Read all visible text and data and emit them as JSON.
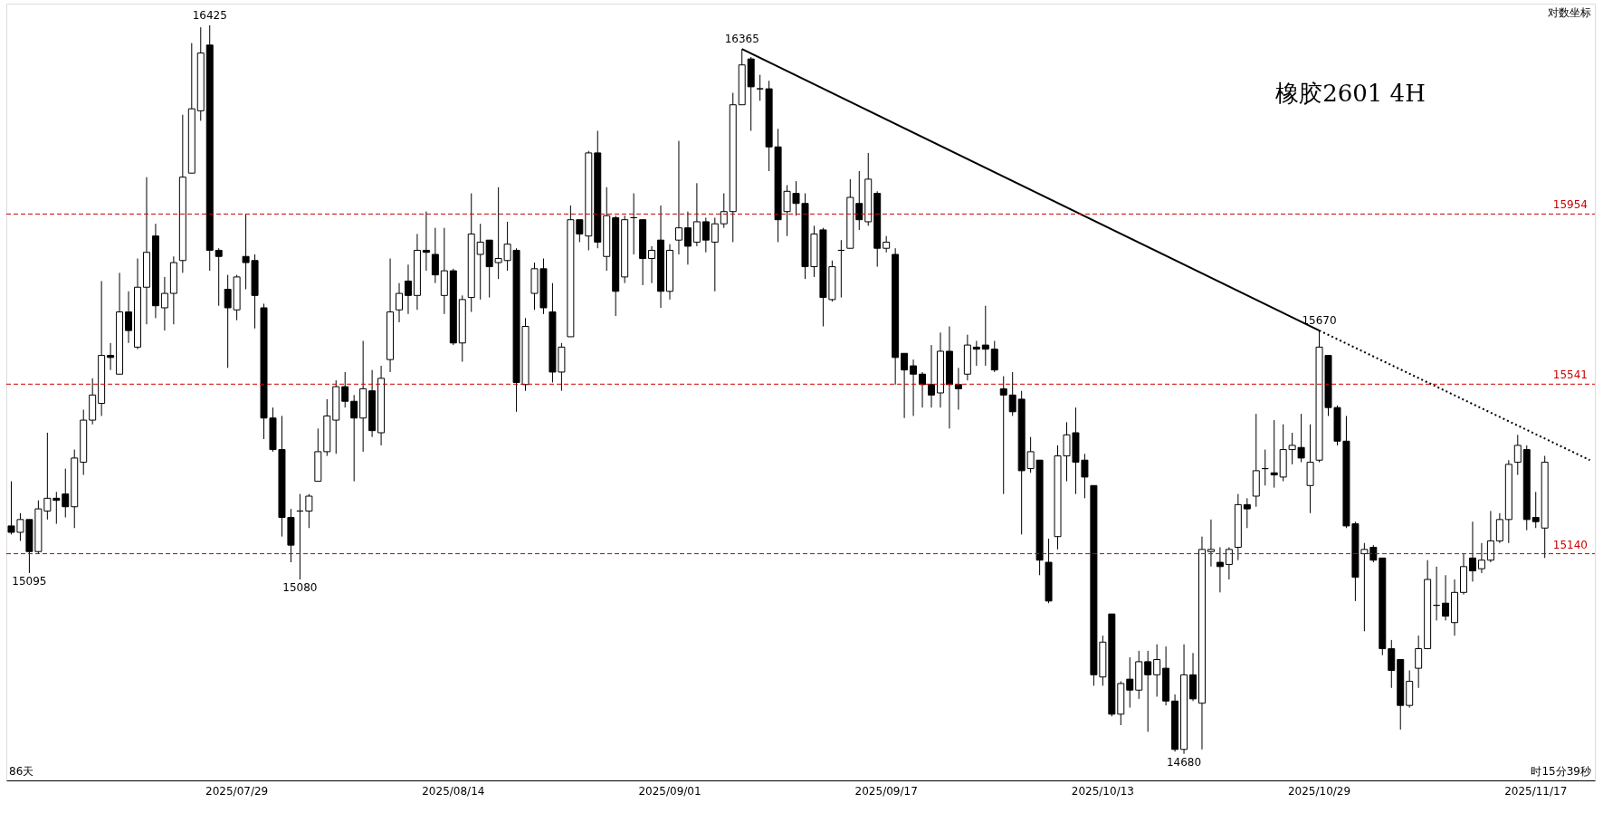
{
  "chart_data": {
    "type": "candlestick",
    "title": "橡胶2601  4H",
    "log": true,
    "tick_labels": "x",
    "ylim": [
      14620,
      16480
    ],
    "categories": [
      null,
      null,
      null,
      null,
      null,
      null,
      null,
      null,
      null,
      null,
      null,
      null,
      null,
      null,
      null,
      null,
      null,
      null,
      null,
      null,
      null,
      null,
      null,
      null,
      null,
      "2025/07/29",
      null,
      null,
      null,
      null,
      null,
      null,
      null,
      null,
      null,
      null,
      null,
      null,
      null,
      null,
      null,
      null,
      null,
      null,
      null,
      null,
      null,
      null,
      null,
      "2025/08/14",
      null,
      null,
      null,
      null,
      null,
      null,
      null,
      null,
      null,
      null,
      null,
      null,
      null,
      null,
      null,
      null,
      null,
      null,
      null,
      null,
      null,
      null,
      null,
      "2025/09/01",
      null,
      null,
      null,
      null,
      null,
      null,
      null,
      null,
      null,
      null,
      null,
      null,
      null,
      null,
      null,
      null,
      null,
      null,
      null,
      null,
      null,
      null,
      null,
      "2025/09/17",
      null,
      null,
      null,
      null,
      null,
      null,
      null,
      null,
      null,
      null,
      null,
      null,
      null,
      null,
      null,
      null,
      null,
      null,
      null,
      null,
      null,
      null,
      null,
      "2025/10/13",
      null,
      null,
      null,
      null,
      null,
      null,
      null,
      null,
      null,
      null,
      null,
      null,
      null,
      null,
      null,
      null,
      null,
      null,
      null,
      null,
      null,
      null,
      null,
      "2025/10/29",
      null,
      null,
      null,
      null,
      null,
      null,
      null,
      null,
      null,
      null,
      null,
      null,
      null,
      null,
      null,
      null,
      null,
      null,
      null,
      null,
      null,
      null,
      null,
      "2025/11/17",
      null,
      null,
      null,
      null,
      null,
      null
    ],
    "ohlc": [
      [
        15205,
        15310,
        15185,
        15190
      ],
      [
        15190,
        15235,
        15170,
        15220
      ],
      [
        15220,
        15220,
        15095,
        15145
      ],
      [
        15145,
        15265,
        15140,
        15245
      ],
      [
        15240,
        15425,
        15220,
        15270
      ],
      [
        15270,
        15285,
        15210,
        15265
      ],
      [
        15280,
        15340,
        15225,
        15250
      ],
      [
        15250,
        15385,
        15200,
        15365
      ],
      [
        15355,
        15480,
        15325,
        15455
      ],
      [
        15455,
        15555,
        15445,
        15515
      ],
      [
        15495,
        15790,
        15465,
        15610
      ],
      [
        15610,
        15640,
        15575,
        15605
      ],
      [
        15565,
        15810,
        15565,
        15715
      ],
      [
        15715,
        15765,
        15640,
        15670
      ],
      [
        15630,
        15845,
        15625,
        15775
      ],
      [
        15775,
        16045,
        15685,
        15860
      ],
      [
        15900,
        15930,
        15700,
        15730
      ],
      [
        15725,
        15800,
        15670,
        15760
      ],
      [
        15760,
        15850,
        15685,
        15835
      ],
      [
        15840,
        16200,
        15810,
        16045
      ],
      [
        16055,
        16380,
        16055,
        16215
      ],
      [
        16210,
        16420,
        16185,
        16355
      ],
      [
        16375,
        16425,
        15815,
        15865
      ],
      [
        15865,
        15870,
        15730,
        15850
      ],
      [
        15770,
        15805,
        15580,
        15725
      ],
      [
        15720,
        15805,
        15695,
        15800
      ],
      [
        15850,
        15954,
        15770,
        15835
      ],
      [
        15840,
        15855,
        15675,
        15755
      ],
      [
        15725,
        15735,
        15410,
        15460
      ],
      [
        15460,
        15485,
        15380,
        15385
      ],
      [
        15385,
        15465,
        15180,
        15225
      ],
      [
        15225,
        15245,
        15120,
        15160
      ],
      [
        15240,
        15280,
        15080,
        15240
      ],
      [
        15240,
        15280,
        15200,
        15275
      ],
      [
        15310,
        15435,
        15310,
        15380
      ],
      [
        15380,
        15505,
        15370,
        15465
      ],
      [
        15455,
        15550,
        15375,
        15535
      ],
      [
        15535,
        15570,
        15485,
        15500
      ],
      [
        15500,
        15515,
        15310,
        15460
      ],
      [
        15460,
        15645,
        15380,
        15530
      ],
      [
        15525,
        15575,
        15415,
        15430
      ],
      [
        15425,
        15585,
        15395,
        15555
      ],
      [
        15600,
        15845,
        15570,
        15715
      ],
      [
        15720,
        15785,
        15690,
        15760
      ],
      [
        15790,
        15830,
        15710,
        15755
      ],
      [
        15755,
        15905,
        15720,
        15865
      ],
      [
        15865,
        15960,
        15815,
        15860
      ],
      [
        15855,
        15920,
        15785,
        15805
      ],
      [
        15755,
        15920,
        15710,
        15815
      ],
      [
        15815,
        15820,
        15635,
        15640
      ],
      [
        15640,
        15755,
        15595,
        15745
      ],
      [
        15750,
        16005,
        15715,
        15905
      ],
      [
        15855,
        15930,
        15745,
        15885
      ],
      [
        15890,
        15890,
        15750,
        15825
      ],
      [
        15835,
        16020,
        15795,
        15845
      ],
      [
        15840,
        15935,
        15815,
        15880
      ],
      [
        15865,
        15870,
        15475,
        15545
      ],
      [
        15540,
        15700,
        15525,
        15680
      ],
      [
        15760,
        15835,
        15720,
        15820
      ],
      [
        15820,
        15845,
        15710,
        15725
      ],
      [
        15715,
        15785,
        15545,
        15570
      ],
      [
        15570,
        15640,
        15525,
        15630
      ],
      [
        15655,
        15975,
        15655,
        15940
      ],
      [
        15940,
        15940,
        15885,
        15905
      ],
      [
        15900,
        16110,
        15865,
        16105
      ],
      [
        16105,
        16160,
        15870,
        15885
      ],
      [
        15850,
        16020,
        15815,
        15950
      ],
      [
        15945,
        15950,
        15705,
        15765
      ],
      [
        15800,
        15950,
        15785,
        15940
      ],
      [
        15945,
        16005,
        15855,
        15945
      ],
      [
        15940,
        15940,
        15780,
        15845
      ],
      [
        15845,
        15875,
        15785,
        15865
      ],
      [
        15890,
        15975,
        15725,
        15765
      ],
      [
        15765,
        15880,
        15745,
        15865
      ],
      [
        15890,
        16135,
        15855,
        15920
      ],
      [
        15920,
        15960,
        15830,
        15875
      ],
      [
        15885,
        16030,
        15875,
        15935
      ],
      [
        15935,
        15945,
        15860,
        15890
      ],
      [
        15885,
        15945,
        15765,
        15930
      ],
      [
        15930,
        16005,
        15920,
        15960
      ],
      [
        15960,
        16255,
        15885,
        16225
      ],
      [
        16225,
        16365,
        16225,
        16325
      ],
      [
        16340,
        16345,
        16160,
        16270
      ],
      [
        16265,
        16300,
        16235,
        16265
      ],
      [
        16265,
        16285,
        16060,
        16120
      ],
      [
        16120,
        16165,
        15885,
        15940
      ],
      [
        15960,
        16025,
        15900,
        16010
      ],
      [
        16005,
        16035,
        15950,
        15980
      ],
      [
        15980,
        16005,
        15795,
        15825
      ],
      [
        15825,
        15925,
        15800,
        15905
      ],
      [
        15915,
        15920,
        15680,
        15750
      ],
      [
        15745,
        15840,
        15740,
        15825
      ],
      [
        15865,
        15890,
        15750,
        15865
      ],
      [
        15870,
        16040,
        15870,
        15995
      ],
      [
        15980,
        16060,
        15915,
        15940
      ],
      [
        15935,
        16105,
        15925,
        16040
      ],
      [
        16005,
        16010,
        15825,
        15870
      ],
      [
        15870,
        15900,
        15860,
        15885
      ],
      [
        15855,
        15870,
        15540,
        15605
      ],
      [
        15615,
        15615,
        15460,
        15575
      ],
      [
        15585,
        15600,
        15465,
        15565
      ],
      [
        15565,
        15570,
        15485,
        15540
      ],
      [
        15540,
        15635,
        15485,
        15515
      ],
      [
        15520,
        15665,
        15485,
        15620
      ],
      [
        15620,
        15680,
        15435,
        15540
      ],
      [
        15540,
        15580,
        15480,
        15530
      ],
      [
        15565,
        15660,
        15550,
        15635
      ],
      [
        15630,
        15645,
        15585,
        15625
      ],
      [
        15635,
        15730,
        15585,
        15625
      ],
      [
        15625,
        15645,
        15570,
        15575
      ],
      [
        15530,
        15560,
        15280,
        15515
      ],
      [
        15515,
        15570,
        15465,
        15475
      ],
      [
        15505,
        15525,
        15185,
        15335
      ],
      [
        15340,
        15415,
        15330,
        15380
      ],
      [
        15360,
        15360,
        15090,
        15125
      ],
      [
        15120,
        15175,
        15025,
        15030
      ],
      [
        15180,
        15395,
        15150,
        15370
      ],
      [
        15370,
        15450,
        15310,
        15420
      ],
      [
        15425,
        15485,
        15280,
        15355
      ],
      [
        15360,
        15375,
        15270,
        15320
      ],
      [
        15300,
        15300,
        14835,
        14860
      ],
      [
        14855,
        14950,
        14835,
        14935
      ],
      [
        15000,
        15000,
        14765,
        14770
      ],
      [
        14770,
        14845,
        14745,
        14840
      ],
      [
        14850,
        14900,
        14785,
        14825
      ],
      [
        14825,
        14915,
        14805,
        14890
      ],
      [
        14890,
        14915,
        14730,
        14860
      ],
      [
        14860,
        14930,
        14810,
        14895
      ],
      [
        14875,
        14925,
        14790,
        14800
      ],
      [
        14800,
        14815,
        14685,
        14690
      ],
      [
        14690,
        14930,
        14680,
        14860
      ],
      [
        14860,
        14910,
        14800,
        14805
      ],
      [
        14795,
        15180,
        14690,
        15150
      ],
      [
        15145,
        15220,
        15110,
        15150
      ],
      [
        15120,
        15155,
        15050,
        15110
      ],
      [
        15115,
        15155,
        15080,
        15150
      ],
      [
        15155,
        15280,
        15125,
        15255
      ],
      [
        15255,
        15270,
        15200,
        15245
      ],
      [
        15275,
        15470,
        15250,
        15335
      ],
      [
        15340,
        15385,
        15300,
        15340
      ],
      [
        15330,
        15455,
        15295,
        15325
      ],
      [
        15320,
        15445,
        15310,
        15385
      ],
      [
        15385,
        15425,
        15350,
        15395
      ],
      [
        15390,
        15470,
        15355,
        15365
      ],
      [
        15300,
        15445,
        15235,
        15355
      ],
      [
        15360,
        15670,
        15355,
        15630
      ],
      [
        15610,
        15610,
        15465,
        15485
      ],
      [
        15485,
        15490,
        15395,
        15405
      ],
      [
        15405,
        15465,
        15200,
        15205
      ],
      [
        15210,
        15215,
        15030,
        15085
      ],
      [
        15140,
        15165,
        14960,
        15150
      ],
      [
        15155,
        15160,
        15120,
        15125
      ],
      [
        15130,
        15130,
        14905,
        14920
      ],
      [
        14920,
        14940,
        14830,
        14870
      ],
      [
        14895,
        14895,
        14735,
        14790
      ],
      [
        14790,
        14870,
        14785,
        14845
      ],
      [
        14875,
        14950,
        14830,
        14920
      ],
      [
        14920,
        15125,
        14920,
        15080
      ],
      [
        15020,
        15110,
        14985,
        15020
      ],
      [
        15025,
        15090,
        14985,
        14995
      ],
      [
        14980,
        15080,
        14950,
        15050
      ],
      [
        15050,
        15140,
        15045,
        15110
      ],
      [
        15130,
        15215,
        15075,
        15100
      ],
      [
        15105,
        15165,
        15095,
        15125
      ],
      [
        15125,
        15240,
        15120,
        15170
      ],
      [
        15170,
        15235,
        15165,
        15220
      ],
      [
        15220,
        15360,
        15165,
        15350
      ],
      [
        15355,
        15420,
        15325,
        15395
      ],
      [
        15385,
        15395,
        15195,
        15220
      ],
      [
        15225,
        15285,
        15200,
        15215
      ],
      [
        15200,
        15370,
        15130,
        15355
      ],
      null,
      null,
      null,
      null,
      null
    ],
    "series": [
      {
        "type": "line",
        "color": "#000000",
        "line_style": "solid",
        "values": [
          null,
          null,
          null,
          null,
          null,
          null,
          null,
          null,
          null,
          null,
          null,
          null,
          null,
          null,
          null,
          null,
          null,
          null,
          null,
          null,
          null,
          null,
          null,
          null,
          null,
          null,
          null,
          null,
          null,
          null,
          null,
          null,
          null,
          null,
          null,
          null,
          null,
          null,
          null,
          null,
          null,
          null,
          null,
          null,
          null,
          null,
          null,
          null,
          null,
          null,
          null,
          null,
          null,
          null,
          null,
          null,
          null,
          null,
          null,
          null,
          null,
          null,
          null,
          null,
          null,
          null,
          null,
          null,
          null,
          null,
          null,
          null,
          null,
          null,
          null,
          null,
          null,
          null,
          null,
          null,
          null,
          16365,
          null,
          null,
          null,
          null,
          null,
          null,
          null,
          null,
          null,
          null,
          null,
          null,
          null,
          null,
          null,
          null,
          null,
          null,
          null,
          null,
          null,
          null,
          null,
          null,
          null,
          null,
          null,
          null,
          null,
          null,
          null,
          null,
          null,
          null,
          null,
          null,
          null,
          null,
          null,
          null,
          null,
          null,
          null,
          null,
          null,
          null,
          null,
          null,
          null,
          null,
          null,
          null,
          null,
          null,
          null,
          null,
          null,
          null,
          null,
          null,
          null,
          null,
          null,
          15670,
          null,
          null,
          null,
          null,
          null,
          null,
          null,
          null,
          null,
          null,
          null,
          null,
          null,
          null,
          null,
          null,
          null,
          null,
          null,
          null,
          null,
          null,
          null,
          null,
          null,
          null,
          null,
          null,
          null,
          null
        ]
      },
      {
        "type": "line",
        "color": "#000000",
        "line_style": "dotted",
        "values": [
          null,
          null,
          null,
          null,
          null,
          null,
          null,
          null,
          null,
          null,
          null,
          null,
          null,
          null,
          null,
          null,
          null,
          null,
          null,
          null,
          null,
          null,
          null,
          null,
          null,
          null,
          null,
          null,
          null,
          null,
          null,
          null,
          null,
          null,
          null,
          null,
          null,
          null,
          null,
          null,
          null,
          null,
          null,
          null,
          null,
          null,
          null,
          null,
          null,
          null,
          null,
          null,
          null,
          null,
          null,
          null,
          null,
          null,
          null,
          null,
          null,
          null,
          null,
          null,
          null,
          null,
          null,
          null,
          null,
          null,
          null,
          null,
          null,
          null,
          null,
          null,
          null,
          null,
          null,
          null,
          null,
          null,
          null,
          null,
          null,
          null,
          null,
          null,
          null,
          null,
          null,
          null,
          null,
          null,
          null,
          null,
          null,
          null,
          null,
          null,
          null,
          null,
          null,
          null,
          null,
          null,
          null,
          null,
          null,
          null,
          null,
          null,
          null,
          null,
          null,
          null,
          null,
          null,
          null,
          null,
          null,
          null,
          null,
          null,
          null,
          null,
          null,
          null,
          null,
          null,
          null,
          null,
          null,
          null,
          null,
          null,
          null,
          null,
          null,
          null,
          null,
          null,
          null,
          null,
          null,
          15670,
          null,
          null,
          null,
          null,
          null,
          null,
          null,
          null,
          null,
          null,
          null,
          null,
          null,
          null,
          null,
          null,
          null,
          null,
          null,
          null,
          null,
          null,
          null,
          null,
          null,
          null,
          null,
          null,
          null,
          15360
        ]
      }
    ],
    "ref_lines": [
      {
        "axis": "y",
        "value": 15954,
        "label": "15954",
        "color": "#cc0000",
        "line_style": "dashed"
      },
      {
        "axis": "y",
        "value": 15541,
        "label": "15541",
        "color": "#cc0000",
        "line_style": "dashed"
      },
      {
        "axis": "y",
        "value": 15140,
        "label": "15140",
        "color": "#cc0000",
        "line_style": "dashed"
      }
    ],
    "annotations": [
      "对数坐标",
      "86天",
      "时15分39秒",
      {
        "text": "16425",
        "y": 16425
      },
      {
        "text": "15095",
        "y": 15095
      },
      {
        "text": "15080",
        "y": 15080
      },
      {
        "text": "16365",
        "y": 16365
      },
      {
        "text": "15670",
        "y": 15670
      },
      {
        "text": "14680",
        "y": 14680
      }
    ]
  }
}
